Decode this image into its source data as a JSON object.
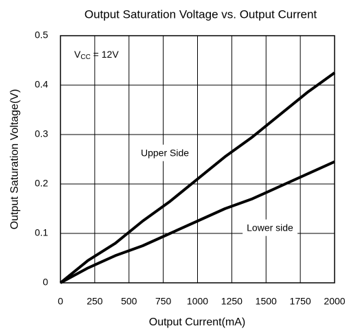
{
  "chart_data": {
    "type": "line",
    "title": "Output Saturation Voltage vs. Output Current",
    "x_label": "Output Current(mA)",
    "y_label": "Output Saturation Voltage(V)",
    "annotation": {
      "main": "V",
      "sub": "CC",
      "rest": " = 12V"
    },
    "x": [
      0,
      200,
      400,
      600,
      800,
      1000,
      1200,
      1400,
      1600,
      1800,
      2000
    ],
    "series": [
      {
        "name": "Upper Side",
        "color": "#000000",
        "values": [
          0,
          0.045,
          0.08,
          0.125,
          0.165,
          0.21,
          0.255,
          0.295,
          0.34,
          0.385,
          0.425
        ]
      },
      {
        "name": "Lower side",
        "color": "#000000",
        "values": [
          0,
          0.03,
          0.055,
          0.075,
          0.1,
          0.125,
          0.15,
          0.17,
          0.195,
          0.22,
          0.245
        ]
      }
    ],
    "xlim": [
      0,
      2000
    ],
    "xticks": [
      0,
      250,
      500,
      750,
      1000,
      1250,
      1500,
      1750,
      2000
    ],
    "ylim": [
      0,
      0.5
    ],
    "yticks": [
      0,
      0.1,
      0.2,
      0.3,
      0.4,
      0.5
    ],
    "grid": true
  }
}
